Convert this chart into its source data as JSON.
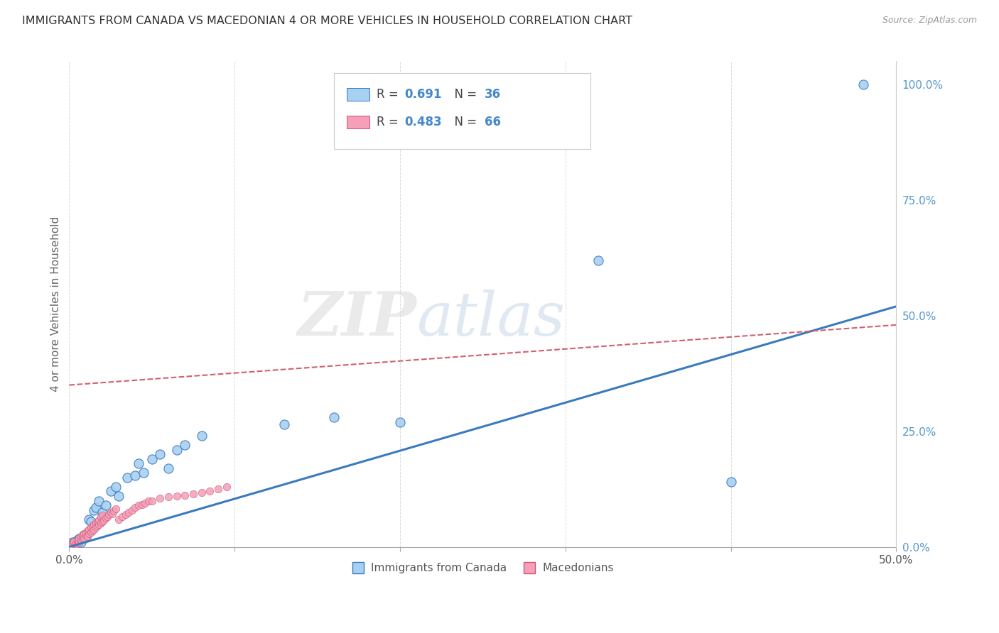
{
  "title": "IMMIGRANTS FROM CANADA VS MACEDONIAN 4 OR MORE VEHICLES IN HOUSEHOLD CORRELATION CHART",
  "source": "Source: ZipAtlas.com",
  "ylabel": "4 or more Vehicles in Household",
  "xlim": [
    0.0,
    0.5
  ],
  "ylim": [
    0.0,
    1.05
  ],
  "xtick_vals": [
    0.0,
    0.1,
    0.2,
    0.3,
    0.4,
    0.5
  ],
  "xtick_labels_show": [
    "0.0%",
    "",
    "",
    "",
    "",
    "50.0%"
  ],
  "yticks": [
    0.0,
    0.25,
    0.5,
    0.75,
    1.0
  ],
  "ytick_labels": [
    "0.0%",
    "25.0%",
    "50.0%",
    "75.0%",
    "100.0%"
  ],
  "watermark": "ZIPatlas",
  "legend_label1": "Immigrants from Canada",
  "legend_label2": "Macedonians",
  "R1": 0.691,
  "N1": 36,
  "R2": 0.483,
  "N2": 66,
  "color1": "#a8d0f0",
  "color2": "#f5a0b8",
  "trendline1_color": "#3a7abf",
  "trendline2_color": "#d06070",
  "background_color": "#ffffff",
  "grid_color": "#cccccc",
  "title_color": "#333333",
  "axis_label_color": "#666666",
  "right_tick_color": "#5599cc",
  "trendline1_slope": 1.04,
  "trendline1_intercept": 0.0,
  "trendline2_slope": 0.26,
  "trendline2_intercept": 0.35,
  "canada_x": [
    0.001,
    0.002,
    0.003,
    0.004,
    0.005,
    0.006,
    0.007,
    0.008,
    0.009,
    0.01,
    0.012,
    0.013,
    0.015,
    0.016,
    0.018,
    0.02,
    0.022,
    0.025,
    0.028,
    0.03,
    0.035,
    0.04,
    0.042,
    0.045,
    0.05,
    0.055,
    0.06,
    0.065,
    0.07,
    0.08,
    0.13,
    0.16,
    0.2,
    0.32,
    0.4,
    0.48
  ],
  "canada_y": [
    0.005,
    0.01,
    0.008,
    0.012,
    0.015,
    0.018,
    0.01,
    0.02,
    0.025,
    0.022,
    0.06,
    0.055,
    0.08,
    0.085,
    0.1,
    0.075,
    0.09,
    0.12,
    0.13,
    0.11,
    0.15,
    0.155,
    0.18,
    0.16,
    0.19,
    0.2,
    0.17,
    0.21,
    0.22,
    0.24,
    0.265,
    0.28,
    0.27,
    0.62,
    0.14,
    1.0
  ],
  "macedonian_x": [
    0.001,
    0.002,
    0.003,
    0.003,
    0.004,
    0.004,
    0.005,
    0.005,
    0.006,
    0.006,
    0.007,
    0.007,
    0.008,
    0.008,
    0.009,
    0.009,
    0.01,
    0.01,
    0.011,
    0.011,
    0.012,
    0.012,
    0.013,
    0.013,
    0.014,
    0.014,
    0.015,
    0.015,
    0.016,
    0.016,
    0.017,
    0.017,
    0.018,
    0.018,
    0.019,
    0.019,
    0.02,
    0.02,
    0.021,
    0.022,
    0.023,
    0.024,
    0.025,
    0.026,
    0.027,
    0.028,
    0.03,
    0.032,
    0.034,
    0.036,
    0.038,
    0.04,
    0.042,
    0.044,
    0.046,
    0.048,
    0.05,
    0.055,
    0.06,
    0.065,
    0.07,
    0.075,
    0.08,
    0.085,
    0.09,
    0.095
  ],
  "macedonian_y": [
    0.005,
    0.008,
    0.01,
    0.012,
    0.005,
    0.008,
    0.012,
    0.015,
    0.01,
    0.018,
    0.015,
    0.022,
    0.018,
    0.025,
    0.02,
    0.028,
    0.025,
    0.03,
    0.022,
    0.035,
    0.028,
    0.038,
    0.032,
    0.042,
    0.035,
    0.045,
    0.038,
    0.048,
    0.042,
    0.052,
    0.045,
    0.055,
    0.048,
    0.058,
    0.052,
    0.065,
    0.055,
    0.068,
    0.058,
    0.062,
    0.065,
    0.07,
    0.075,
    0.072,
    0.078,
    0.082,
    0.06,
    0.065,
    0.07,
    0.075,
    0.08,
    0.085,
    0.09,
    0.092,
    0.095,
    0.1,
    0.1,
    0.105,
    0.108,
    0.11,
    0.112,
    0.115,
    0.118,
    0.12,
    0.125,
    0.13
  ]
}
